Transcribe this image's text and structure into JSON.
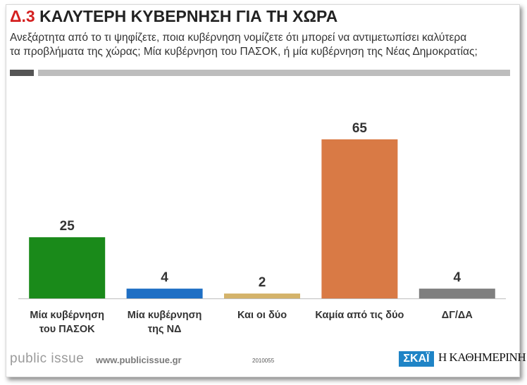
{
  "header": {
    "code": "Δ.3",
    "title": "ΚΑΛΥΤΕΡΗ ΚΥΒΕΡΝΗΣΗ ΓΙΑ ΤΗ ΧΩΡΑ",
    "subtitle_line1": "Ανεξάρτητα από το τι ψηφίζετε, ποια κυβέρνηση νομίζετε ότι μπορεί να αντιμετωπίσει καλύτερα",
    "subtitle_line2": "τα προβλήματα της χώρας; Μία κυβέρνηση του ΠΑΣΟΚ, ή μία κυβέρνηση της Νέας Δημοκρατίας;"
  },
  "footer": {
    "brand": "public issue",
    "url": "www.publicissue.gr",
    "code": "2010055",
    "logo1": "ΣΚΑΪ",
    "logo2": "Η ΚΑΘΗΜΕΡΙΝΗ"
  },
  "chart_data": {
    "type": "bar",
    "categories": [
      [
        "Μία κυβέρνηση",
        "του ΠΑΣΟΚ"
      ],
      [
        "Μία κυβέρνηση",
        "της ΝΔ"
      ],
      [
        "Και οι δύο"
      ],
      [
        "Καμία από τις δύο"
      ],
      [
        "ΔΓ/ΔΑ"
      ]
    ],
    "values": [
      25,
      4,
      2,
      65,
      4
    ],
    "colors": [
      "#1a8a1a",
      "#1f6fc4",
      "#d4b36a",
      "#d97a45",
      "#7f7f7f"
    ],
    "title": "ΚΑΛΥΤΕΡΗ ΚΥΒΕΡΝΗΣΗ ΓΙΑ ΤΗ ΧΩΡΑ",
    "xlabel": "",
    "ylabel": "",
    "ylim": [
      0,
      65
    ],
    "grid": false
  }
}
